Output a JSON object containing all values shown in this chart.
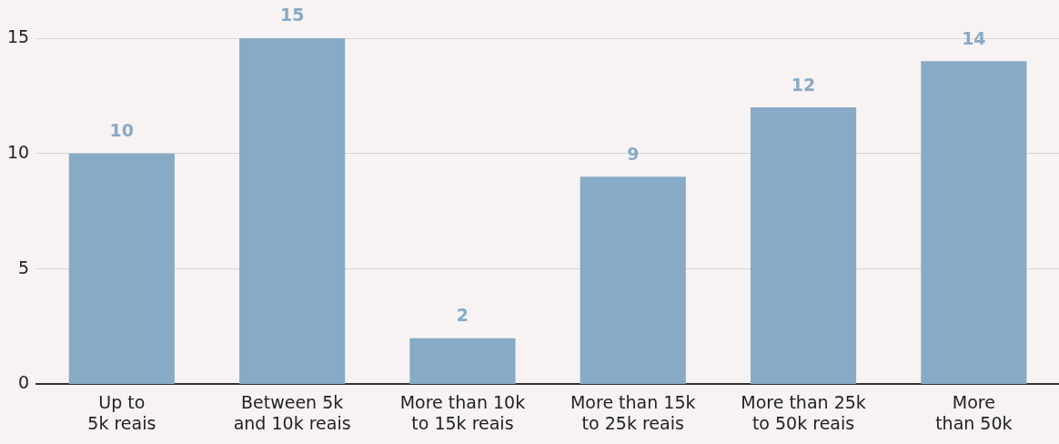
{
  "chart_data": {
    "type": "bar",
    "categories": [
      "Up to\n5k reais",
      "Between 5k\nand 10k reais",
      "More than 10k\nto 15k reais",
      "More than 15k\nto 25k reais",
      "More than 25k\nto 50k reais",
      "More\nthan 50k"
    ],
    "values": [
      10,
      15,
      2,
      9,
      12,
      14
    ],
    "color": "#87aac6",
    "ylim": [
      0,
      15
    ],
    "yticks": [
      0,
      5,
      10,
      15
    ],
    "grid": "y",
    "legend": false,
    "data_labels": true
  }
}
